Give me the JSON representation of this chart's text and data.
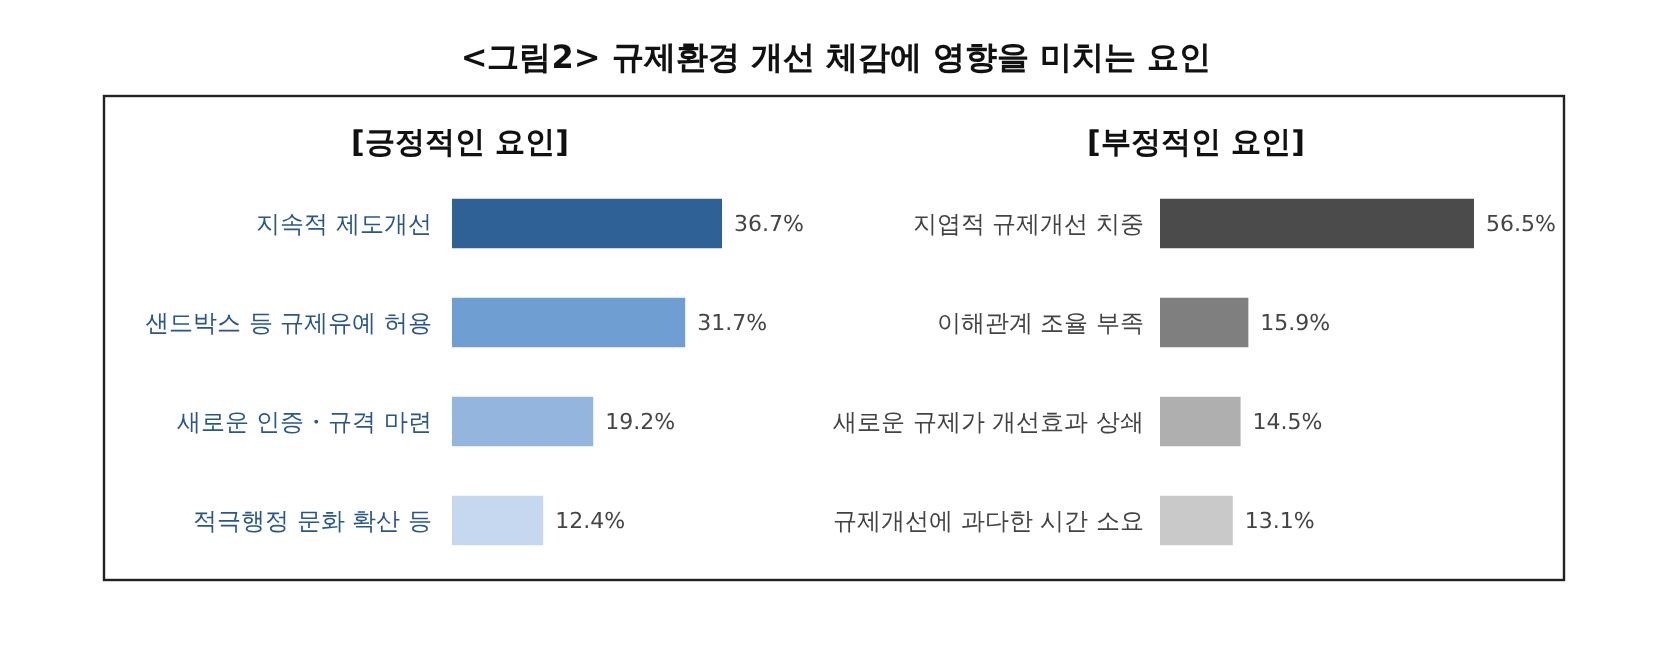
{
  "chart_data": [
    {
      "type": "bar",
      "orientation": "horizontal",
      "title": "<그림2> 규제환경 개선 체감에 영향을 미치는 요인",
      "subtitle": "[긍정적인 요인]",
      "categories": [
        "지속적 제도개선",
        "샌드박스 등 규제유예 허용",
        "새로운 인증・규격 마련",
        "적극행정 문화 확산 등"
      ],
      "values": [
        36.7,
        31.7,
        19.2,
        12.4
      ],
      "value_labels": [
        "36.7%",
        "31.7%",
        "19.2%",
        "12.4%"
      ],
      "colors": [
        "#2f6197",
        "#6f9fd2",
        "#94b6de",
        "#c5d8ef"
      ]
    },
    {
      "type": "bar",
      "orientation": "horizontal",
      "subtitle": "[부정적인 요인]",
      "categories": [
        "지엽적 규제개선 치중",
        "이해관계 조율 부족",
        "새로운 규제가 개선효과 상쇄",
        "규제개선에 과다한 시간 소요"
      ],
      "values": [
        56.5,
        15.9,
        14.5,
        13.1
      ],
      "value_labels": [
        "56.5%",
        "15.9%",
        "14.5%",
        "13.1%"
      ],
      "colors": [
        "#4b4b4b",
        "#7f7f7f",
        "#afafaf",
        "#c9c9c9"
      ]
    }
  ]
}
